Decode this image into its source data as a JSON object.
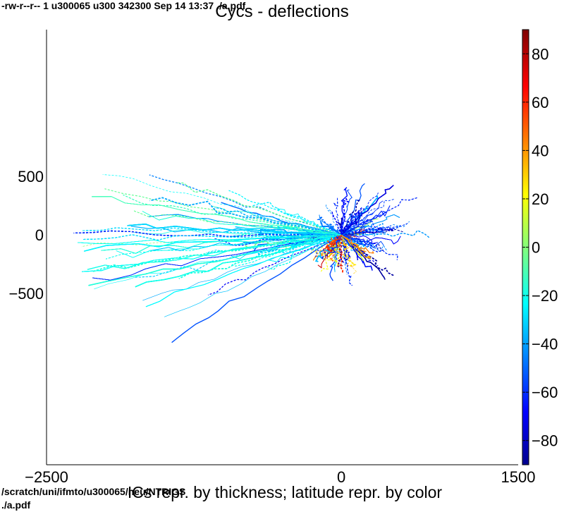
{
  "header_line": "-rw-r--r-- 1 u300065 u300 342300 Sep 14 13:37 ./a.pdf",
  "footer_path": "/scratch/uni/ifmto/u300065/neu/NTRIGS",
  "footer_file": "./a.pdf",
  "chart_data": {
    "type": "scatter",
    "title": "Cycs - deflections",
    "xlabel": "ICs repr. by thickness; latitude repr. by color",
    "ylabel": "",
    "xlim": [
      -2500,
      1500
    ],
    "ylim": [
      -1000,
      1000
    ],
    "x_ticks": [
      -2500,
      0,
      1500
    ],
    "x_tick_labels": [
      "−2500",
      "0",
      "1500"
    ],
    "y_ticks": [
      500,
      0,
      -500
    ],
    "y_tick_labels": [
      "500",
      "0",
      "−500"
    ],
    "grid": false,
    "colorbar": {
      "range": [
        -90,
        90
      ],
      "ticks": [
        80,
        60,
        40,
        20,
        0,
        -20,
        -40,
        -60,
        -80
      ],
      "tick_labels": [
        "80",
        "60",
        "40",
        "20",
        "0",
        "−20",
        "−40",
        "−60",
        "−80"
      ],
      "colormap": "jet",
      "stops": [
        "#00008f",
        "#0000ff",
        "#00ffff",
        "#ffff00",
        "#ff0000",
        "#800000"
      ]
    },
    "origin": [
      0,
      0
    ],
    "track_count": 900
  }
}
